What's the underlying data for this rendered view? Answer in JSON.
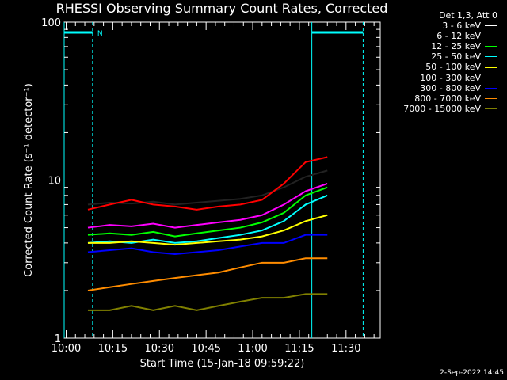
{
  "chart_data": {
    "type": "line",
    "title": "RHESSI Observing Summary Count Rates, Corrected",
    "xlabel": "Start Time (15-Jan-18 09:59:22)",
    "ylabel": "Corrected Count Rate (s⁻¹ detector⁻¹)",
    "x_ticks": [
      "10:00",
      "10:15",
      "10:30",
      "10:45",
      "11:00",
      "11:15",
      "11:30"
    ],
    "x_range": [
      "09:59:22",
      "11:41:00"
    ],
    "y_scale": "log",
    "ylim": [
      1,
      100
    ],
    "y_ticks": [
      "1",
      "10",
      "100"
    ],
    "legend_header": "Det 1,3, Att 0",
    "series": [
      {
        "name": "3 - 6 keV",
        "color": "#000000",
        "values": [
          7.0,
          7.2,
          7.1,
          7.3,
          7.0,
          7.2,
          7.4,
          7.6,
          8.0,
          9.0,
          10.5,
          11.5
        ]
      },
      {
        "name": "6 - 12 keV",
        "color": "#ff00ff",
        "values": [
          5.0,
          5.2,
          5.1,
          5.3,
          5.0,
          5.2,
          5.4,
          5.6,
          6.0,
          7.0,
          8.5,
          9.5
        ]
      },
      {
        "name": "12 - 25 keV",
        "color": "#00ff00",
        "values": [
          4.5,
          4.6,
          4.5,
          4.7,
          4.4,
          4.6,
          4.8,
          5.0,
          5.4,
          6.2,
          8.0,
          9.0
        ]
      },
      {
        "name": "25 - 50 keV",
        "color": "#00ffff",
        "values": [
          4.0,
          4.1,
          4.0,
          4.2,
          4.0,
          4.1,
          4.3,
          4.5,
          4.8,
          5.5,
          7.0,
          8.0
        ]
      },
      {
        "name": "50 - 100 keV",
        "color": "#ffff00",
        "values": [
          4.0,
          4.0,
          4.1,
          4.0,
          3.9,
          4.0,
          4.1,
          4.2,
          4.4,
          4.8,
          5.5,
          6.0
        ]
      },
      {
        "name": "100 - 300 keV",
        "color": "#ff0000",
        "values": [
          6.5,
          7.0,
          7.5,
          7.0,
          6.8,
          6.5,
          6.8,
          7.0,
          7.5,
          9.5,
          13.0,
          14.0
        ]
      },
      {
        "name": "300 - 800 keV",
        "color": "#0000ff",
        "values": [
          3.5,
          3.6,
          3.7,
          3.5,
          3.4,
          3.5,
          3.6,
          3.8,
          4.0,
          4.0,
          4.5,
          4.5
        ]
      },
      {
        "name": "800 - 7000 keV",
        "color": "#ff8c00",
        "values": [
          2.0,
          2.1,
          2.2,
          2.3,
          2.4,
          2.5,
          2.6,
          2.8,
          3.0,
          3.0,
          3.2,
          3.2
        ]
      },
      {
        "name": "7000 - 15000 keV",
        "color": "#808000",
        "values": [
          1.5,
          1.5,
          1.6,
          1.5,
          1.6,
          1.5,
          1.6,
          1.7,
          1.8,
          1.8,
          1.9,
          1.9
        ]
      }
    ],
    "x_sample_times": [
      "10:07",
      "10:14",
      "10:21",
      "10:28",
      "10:35",
      "10:42",
      "10:49",
      "10:56",
      "11:03",
      "11:10",
      "11:17",
      "11:24"
    ],
    "annotations": {
      "flag_label": "N",
      "night_intervals": [
        [
          "09:59:22",
          "10:08:30"
        ],
        [
          "11:19:00",
          "11:35:30"
        ]
      ]
    },
    "grid": false
  },
  "footer": {
    "date": "2-Sep-2022 14:45"
  }
}
